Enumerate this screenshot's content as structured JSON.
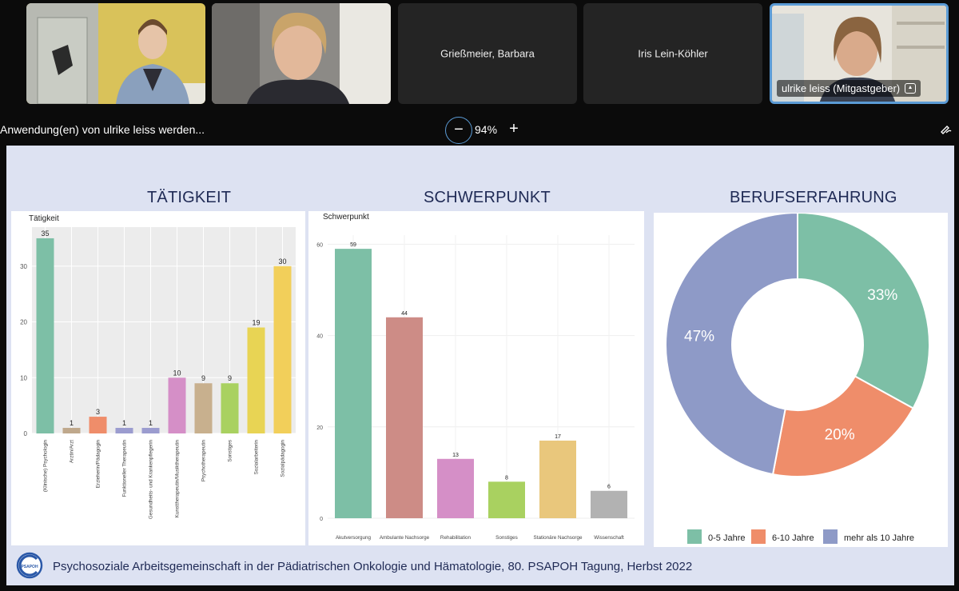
{
  "participants": [
    {
      "name": "",
      "type": "video"
    },
    {
      "name": "",
      "type": "video"
    },
    {
      "name": "Grießmeier, Barbara",
      "type": "name"
    },
    {
      "name": "Iris Lein-Köhler",
      "type": "name"
    },
    {
      "name": "ulrike leiss (Mitgastgeber)",
      "type": "video",
      "active": true
    }
  ],
  "share": {
    "text": "Anwendung(en) von ulrike leiss werden...",
    "zoom_minus": "−",
    "zoom_level": "94%",
    "zoom_plus": "+"
  },
  "slide": {
    "title_left": "TÄTIGKEIT",
    "title_mid": "SCHWERPUNKT",
    "title_right": "BERUFSERFAHRUNG",
    "footer": "Psychosoziale Arbeitsgemeinschaft in der Pädiatrischen Onkologie und Hämatologie, 80. PSAPOH Tagung, Herbst 2022",
    "logo_text": "PSAPOH"
  },
  "colors": {
    "green": "#7dbfa6",
    "salmon": "#ef8d6a",
    "lavender": "#8e9ac7",
    "pink": "#d58fc7",
    "tan": "#c8b08e",
    "lime": "#a9d160",
    "yellow": "#e8d454",
    "gold": "#f2cf5a",
    "rose": "#cd8c86",
    "sand": "#e9c77c",
    "grey": "#b2b2b2"
  },
  "chart_data": [
    {
      "type": "bar",
      "title": "Tätigkeit",
      "categories": [
        "(Klinische) Psychologin",
        "Arztin/Arzt",
        "Erzieherin/Pädagogin",
        "Funktioneller Therapeutin",
        "Gesundheits- und Krankenpflegerin",
        "Kunsttherapeutin/Musiktherapeutin",
        "Psychotherapeutin",
        "Sonstiges",
        "Sozialarbeiterin",
        "Sozialpädagogin"
      ],
      "values": [
        35,
        1,
        3,
        1,
        1,
        10,
        9,
        9,
        19,
        30
      ],
      "colors": [
        "#7dbfa6",
        "#bfa88c",
        "#ef8d6a",
        "#9b9ccf",
        "#9b9ccf",
        "#d58fc7",
        "#c8b08e",
        "#a9d160",
        "#e8d454",
        "#f2cf5a"
      ],
      "yticks": [
        0,
        10,
        20,
        30
      ],
      "ylim": [
        0,
        37
      ]
    },
    {
      "type": "bar",
      "title": "Schwerpunkt",
      "categories": [
        "Akutversorgung",
        "Ambulante Nachsorge",
        "Rehabilitation",
        "Sonstiges",
        "Stationäre Nachsorge",
        "Wissenschaft"
      ],
      "values": [
        59,
        44,
        13,
        8,
        17,
        6
      ],
      "colors": [
        "#7dbfa6",
        "#cd8c86",
        "#d58fc7",
        "#a9d160",
        "#e9c77c",
        "#b2b2b2"
      ],
      "yticks": [
        0,
        20,
        40,
        60
      ],
      "ylim": [
        0,
        62
      ]
    },
    {
      "type": "pie",
      "categories": [
        "0-5 Jahre",
        "6-10 Jahre",
        "mehr als 10 Jahre"
      ],
      "values": [
        33,
        20,
        47
      ],
      "labels": [
        "33%",
        "20%",
        "47%"
      ],
      "colors": [
        "#7dbfa6",
        "#ef8d6a",
        "#8e9ac7"
      ],
      "legend": "bottom"
    }
  ]
}
